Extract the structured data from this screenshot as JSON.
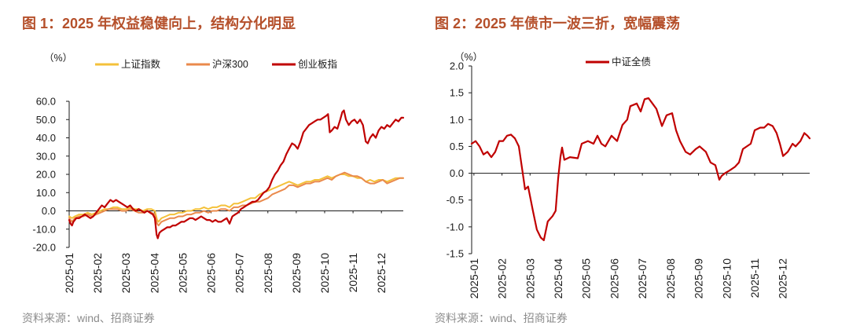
{
  "colors": {
    "title": "#b5502b",
    "source": "#8c8c8c",
    "axis": "#1a1a1a"
  },
  "chart_data": [
    {
      "type": "line",
      "title": "图 1：2025 年权益稳健向上，结构分化明显",
      "source": "资料来源：wind、招商证券",
      "xlabel": "",
      "ylabel": "（%）",
      "legend": "top",
      "xlim": [
        1.0,
        12.77
      ],
      "ylim": [
        -20,
        60
      ],
      "ytick_values": [
        60,
        50,
        40,
        30,
        20,
        10,
        0,
        -10,
        -20
      ],
      "ytick_labels": [
        "60.0",
        "50.0",
        "40.0",
        "30.0",
        "20.0",
        "10.0",
        "0.0",
        "-10.0",
        "-20.0"
      ],
      "xtick_values": [
        1,
        2,
        3,
        4,
        5,
        6,
        7,
        8,
        9,
        10,
        11,
        12
      ],
      "xtick_labels": [
        "2025-01",
        "2025-02",
        "2025-03",
        "2025-04",
        "2025-05",
        "2025-06",
        "2025-07",
        "2025-08",
        "2025-09",
        "2025-10",
        "2025-11",
        "2025-12"
      ],
      "series": [
        {
          "name": "上证指数",
          "color": "#f4c13a",
          "x": [
            1.0,
            1.1,
            1.2,
            1.35,
            1.5,
            1.65,
            1.8,
            1.95,
            2.1,
            2.25,
            2.4,
            2.55,
            2.7,
            2.85,
            3.0,
            3.15,
            3.3,
            3.45,
            3.6,
            3.75,
            3.9,
            4.02,
            4.1,
            4.15,
            4.25,
            4.4,
            4.55,
            4.7,
            4.85,
            5.0,
            5.15,
            5.3,
            5.45,
            5.6,
            5.75,
            5.9,
            6.05,
            6.2,
            6.35,
            6.5,
            6.65,
            6.8,
            6.95,
            7.1,
            7.25,
            7.4,
            7.55,
            7.7,
            7.85,
            8.0,
            8.15,
            8.3,
            8.45,
            8.6,
            8.75,
            8.9,
            9.05,
            9.2,
            9.35,
            9.5,
            9.65,
            9.8,
            9.95,
            10.1,
            10.25,
            10.4,
            10.55,
            10.7,
            10.85,
            11.0,
            11.15,
            11.3,
            11.45,
            11.6,
            11.75,
            11.9,
            12.05,
            12.2,
            12.35,
            12.5,
            12.65,
            12.77
          ],
          "values": [
            -3,
            -4,
            -3,
            -2,
            -2,
            -1,
            -2,
            -1,
            0,
            1,
            1,
            2,
            2,
            1,
            1,
            2,
            1,
            1,
            0,
            1,
            1,
            0,
            -5,
            -6,
            -4,
            -3,
            -2,
            -2,
            -1,
            -1,
            0,
            0,
            1,
            1,
            2,
            1,
            2,
            2,
            3,
            3,
            2,
            4,
            4,
            5,
            6,
            7,
            7,
            9,
            10,
            11,
            12,
            13,
            14,
            15,
            16,
            15,
            14,
            15,
            16,
            16,
            17,
            17,
            18,
            19,
            18,
            19,
            20,
            20,
            19,
            19,
            18,
            18,
            16,
            17,
            16,
            17,
            17,
            16,
            17,
            18,
            18,
            18
          ]
        },
        {
          "name": "沪深300",
          "color": "#ea8a4c",
          "x": [
            1.0,
            1.1,
            1.2,
            1.35,
            1.5,
            1.65,
            1.8,
            1.95,
            2.1,
            2.25,
            2.4,
            2.55,
            2.7,
            2.85,
            3.0,
            3.15,
            3.3,
            3.45,
            3.6,
            3.75,
            3.9,
            4.02,
            4.1,
            4.15,
            4.25,
            4.4,
            4.55,
            4.7,
            4.85,
            5.0,
            5.15,
            5.3,
            5.45,
            5.6,
            5.75,
            5.9,
            6.05,
            6.2,
            6.35,
            6.5,
            6.65,
            6.8,
            6.95,
            7.1,
            7.25,
            7.4,
            7.55,
            7.7,
            7.85,
            8.0,
            8.15,
            8.3,
            8.45,
            8.6,
            8.75,
            8.9,
            9.05,
            9.2,
            9.35,
            9.5,
            9.65,
            9.8,
            9.95,
            10.1,
            10.25,
            10.4,
            10.55,
            10.7,
            10.85,
            11.0,
            11.15,
            11.3,
            11.45,
            11.6,
            11.75,
            11.9,
            12.05,
            12.2,
            12.35,
            12.5,
            12.65,
            12.77
          ],
          "values": [
            -4,
            -6,
            -4,
            -3,
            -3,
            -2,
            -3,
            -2,
            -1,
            0,
            1,
            1,
            1,
            0,
            0,
            1,
            0,
            -1,
            -1,
            0,
            -1,
            -2,
            -7,
            -8,
            -6,
            -5,
            -4,
            -4,
            -3,
            -3,
            -2,
            -2,
            -1,
            -1,
            0,
            -1,
            0,
            0,
            1,
            1,
            0,
            2,
            2,
            3,
            3,
            4,
            5,
            5,
            6,
            7,
            9,
            10,
            11,
            12,
            14,
            14,
            13,
            14,
            15,
            15,
            16,
            16,
            17,
            18,
            17,
            19,
            20,
            21,
            20,
            19,
            19,
            18,
            16,
            15,
            15,
            16,
            17,
            15,
            16,
            17,
            18,
            18
          ]
        },
        {
          "name": "创业板指",
          "color": "#c00000",
          "x": [
            1.0,
            1.05,
            1.1,
            1.15,
            1.25,
            1.35,
            1.45,
            1.55,
            1.65,
            1.75,
            1.85,
            1.95,
            2.05,
            2.15,
            2.25,
            2.35,
            2.45,
            2.55,
            2.65,
            2.75,
            2.85,
            2.95,
            3.05,
            3.15,
            3.25,
            3.35,
            3.45,
            3.55,
            3.65,
            3.75,
            3.85,
            3.95,
            4.02,
            4.08,
            4.12,
            4.18,
            4.25,
            4.35,
            4.45,
            4.55,
            4.65,
            4.75,
            4.85,
            4.95,
            5.05,
            5.15,
            5.25,
            5.35,
            5.45,
            5.55,
            5.65,
            5.75,
            5.85,
            5.95,
            6.05,
            6.15,
            6.25,
            6.35,
            6.45,
            6.55,
            6.65,
            6.75,
            6.85,
            6.95,
            7.05,
            7.15,
            7.25,
            7.35,
            7.45,
            7.55,
            7.65,
            7.75,
            7.85,
            7.95,
            8.05,
            8.15,
            8.25,
            8.35,
            8.45,
            8.55,
            8.65,
            8.75,
            8.85,
            8.95,
            9.05,
            9.15,
            9.25,
            9.35,
            9.45,
            9.55,
            9.65,
            9.75,
            9.85,
            9.95,
            10.05,
            10.12,
            10.18,
            10.25,
            10.35,
            10.45,
            10.55,
            10.62,
            10.68,
            10.75,
            10.85,
            10.95,
            11.05,
            11.15,
            11.25,
            11.35,
            11.45,
            11.52,
            11.6,
            11.7,
            11.8,
            11.9,
            12.0,
            12.1,
            12.2,
            12.3,
            12.4,
            12.5,
            12.6,
            12.7,
            12.77
          ],
          "values": [
            -5,
            -7,
            -8,
            -6,
            -4,
            -4,
            -3,
            -2,
            -3,
            -4,
            -3,
            -1,
            1,
            3,
            2,
            4,
            6,
            5,
            6,
            5,
            4,
            3,
            2,
            3,
            1,
            0,
            1,
            0,
            -1,
            0,
            -1,
            -2,
            -4,
            -13,
            -15,
            -12,
            -11,
            -10,
            -9,
            -9,
            -8,
            -8,
            -7,
            -6,
            -6,
            -5,
            -4,
            -4,
            -5,
            -4,
            -3,
            -4,
            -5,
            -5,
            -6,
            -5,
            -6,
            -6,
            -5,
            -4,
            -7,
            -3,
            -2,
            -1,
            1,
            2,
            3,
            4,
            5,
            5,
            6,
            8,
            10,
            11,
            13,
            17,
            20,
            22,
            25,
            27,
            31,
            34,
            37,
            36,
            34,
            38,
            43,
            45,
            47,
            48,
            49,
            50,
            50,
            51,
            52,
            53,
            43,
            44,
            46,
            45,
            50,
            54,
            55,
            50,
            47,
            49,
            50,
            48,
            50,
            47,
            38,
            37,
            40,
            42,
            40,
            44,
            46,
            45,
            47,
            46,
            48,
            50,
            49,
            51,
            51
          ]
        }
      ]
    },
    {
      "type": "line",
      "title": "图 2：2025 年债市一波三折，宽幅震荡",
      "source": "资料来源：wind、招商证券",
      "xlabel": "",
      "ylabel": "（%）",
      "legend": "top",
      "xlim": [
        0.92,
        12.96
      ],
      "ylim": [
        -1.5,
        2.0
      ],
      "ytick_values": [
        2.0,
        1.5,
        1.0,
        0.5,
        0.0,
        -0.5,
        -1.0,
        -1.5
      ],
      "ytick_labels": [
        "2.0",
        "1.5",
        "1.0",
        "0.5",
        "0.0",
        "-0.5",
        "-1.0",
        "-1.5"
      ],
      "xtick_values": [
        1,
        2,
        3,
        4,
        5,
        6,
        7,
        8,
        9,
        10,
        11,
        12
      ],
      "xtick_labels": [
        "2025-01",
        "2025-02",
        "2025-03",
        "2025-04",
        "2025-05",
        "2025-06",
        "2025-07",
        "2025-08",
        "2025-09",
        "2025-10",
        "2025-11",
        "2025-12"
      ],
      "series": [
        {
          "name": "中证全债",
          "color": "#c00000",
          "x": [
            0.92,
            1.06,
            1.2,
            1.34,
            1.48,
            1.62,
            1.76,
            1.9,
            2.04,
            2.18,
            2.32,
            2.46,
            2.6,
            2.74,
            2.82,
            2.93,
            3.1,
            3.24,
            3.38,
            3.49,
            3.63,
            3.8,
            3.91,
            4.0,
            4.08,
            4.14,
            4.22,
            4.42,
            4.7,
            4.84,
            5.06,
            5.26,
            5.4,
            5.54,
            5.68,
            5.9,
            6.1,
            6.29,
            6.46,
            6.57,
            6.8,
            6.94,
            7.08,
            7.22,
            7.36,
            7.5,
            7.7,
            7.86,
            8.06,
            8.2,
            8.34,
            8.54,
            8.7,
            8.9,
            9.04,
            9.26,
            9.43,
            9.6,
            9.74,
            9.82,
            9.94,
            10.1,
            10.3,
            10.44,
            10.58,
            10.72,
            10.86,
            11.0,
            11.2,
            11.34,
            11.48,
            11.64,
            11.78,
            11.9,
            12.01,
            12.18,
            12.35,
            12.46,
            12.63,
            12.77,
            12.88,
            12.96
          ],
          "values": [
            0.55,
            0.6,
            0.5,
            0.35,
            0.4,
            0.3,
            0.4,
            0.6,
            0.6,
            0.7,
            0.72,
            0.65,
            0.5,
            0.0,
            -0.3,
            -0.25,
            -0.7,
            -1.05,
            -1.2,
            -1.25,
            -0.9,
            -0.8,
            -0.7,
            -0.1,
            0.3,
            0.48,
            0.25,
            0.3,
            0.28,
            0.55,
            0.6,
            0.55,
            0.7,
            0.55,
            0.5,
            0.7,
            0.6,
            0.9,
            1.0,
            1.25,
            1.3,
            1.15,
            1.38,
            1.4,
            1.3,
            1.2,
            0.88,
            1.08,
            1.12,
            0.8,
            0.6,
            0.4,
            0.35,
            0.45,
            0.5,
            0.4,
            0.2,
            0.15,
            -0.12,
            -0.05,
            0.0,
            0.05,
            0.12,
            0.2,
            0.45,
            0.5,
            0.55,
            0.8,
            0.85,
            0.85,
            0.92,
            0.88,
            0.75,
            0.55,
            0.32,
            0.4,
            0.55,
            0.5,
            0.6,
            0.75,
            0.7,
            0.65
          ]
        }
      ]
    }
  ]
}
